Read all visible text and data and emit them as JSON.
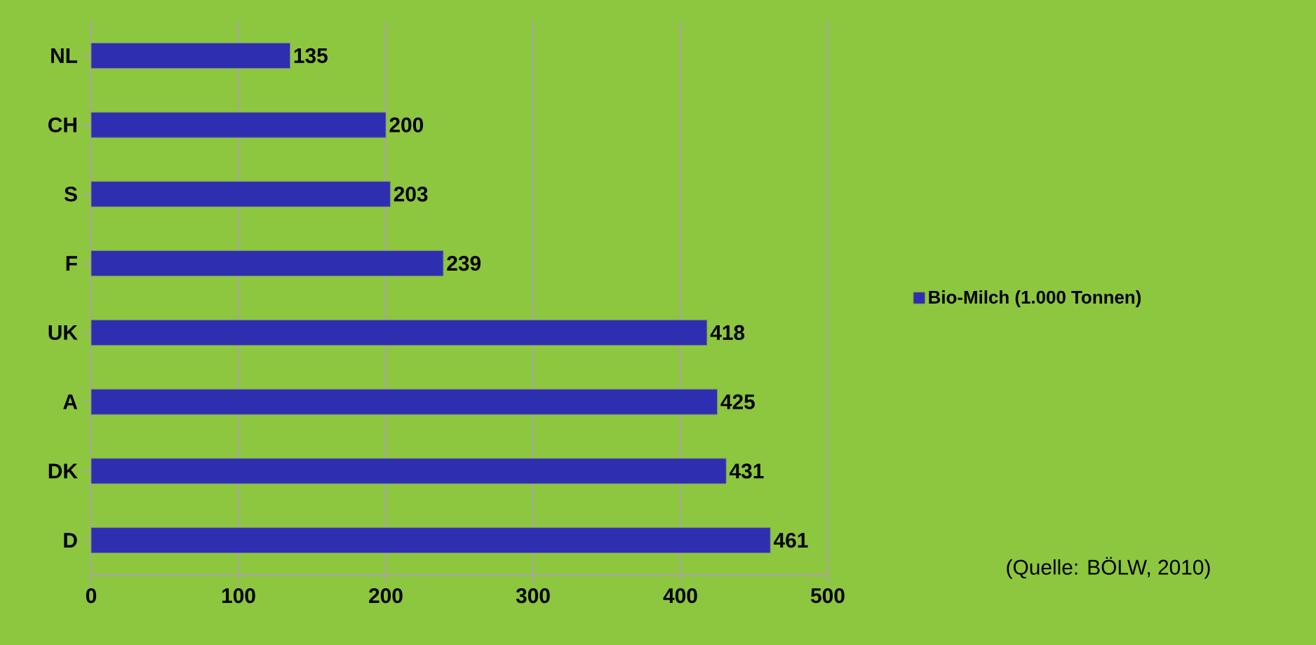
{
  "chart_data": {
    "type": "bar",
    "orientation": "horizontal",
    "categories": [
      "NL",
      "CH",
      "S",
      "F",
      "UK",
      "A",
      "DK",
      "D"
    ],
    "series": [
      {
        "name": "Bio-Milch (1.000 Tonnen)",
        "color": "#2e2eb0",
        "values": [
          135,
          200,
          203,
          239,
          418,
          425,
          431,
          461
        ]
      }
    ],
    "xlim": [
      0,
      500
    ],
    "xticks": [
      0,
      100,
      200,
      300,
      400,
      500
    ],
    "grid": "x",
    "legend": "right",
    "data_labels": true,
    "annotations": [
      "(Quelle: BÖLW, 2010)"
    ]
  }
}
